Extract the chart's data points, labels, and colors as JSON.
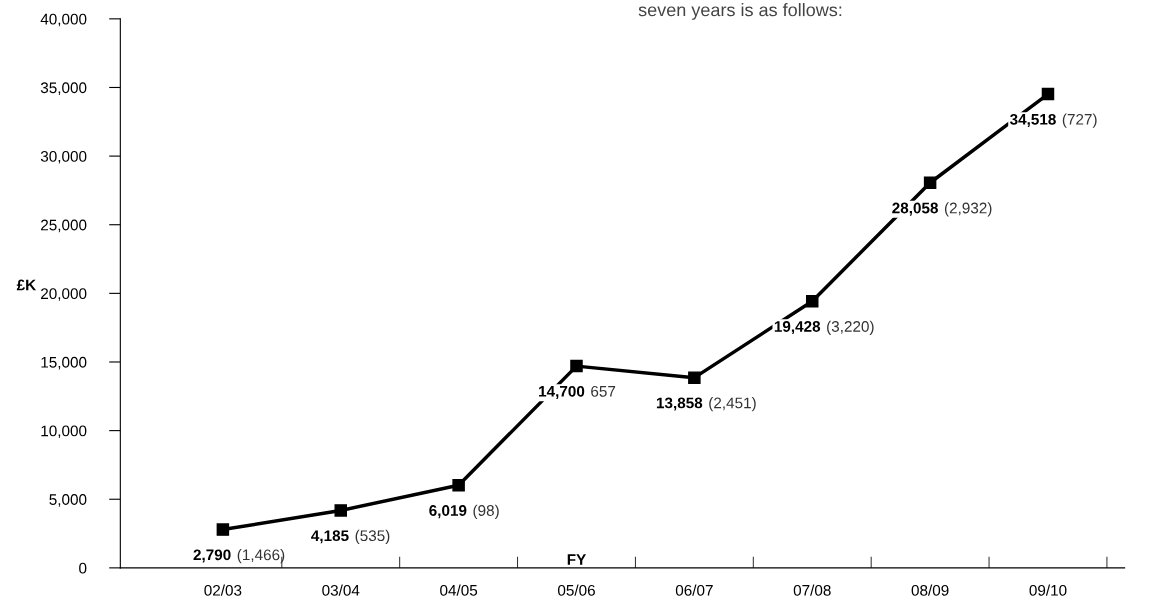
{
  "chart_data": {
    "type": "line",
    "ylabel": "£K",
    "xlabel": "FY",
    "annotations": [
      "seven years is as follows:"
    ],
    "categories": [
      "02/03",
      "03/04",
      "04/05",
      "05/06",
      "06/07",
      "07/08",
      "08/09",
      "09/10"
    ],
    "series": [
      {
        "color": "#000000",
        "values": [
          2790,
          4185,
          6019,
          14700,
          13858,
          19428,
          28058,
          34518
        ],
        "value_labels": [
          "2,790 (1,466)",
          "4,185 (535)",
          "6,019 (98)",
          "14,700 657",
          "13,858 (2,451)",
          "19,428 (3,220)",
          "28,058 (2,932)",
          "34,518 (727)"
        ]
      }
    ],
    "ylim": [
      0,
      40000
    ],
    "yticks": [
      {
        "value": 0,
        "label": "0"
      },
      {
        "value": 5000,
        "label": "5,000"
      },
      {
        "value": 10000,
        "label": "10,000"
      },
      {
        "value": 15000,
        "label": "15,000"
      },
      {
        "value": 20000,
        "label": "20,000"
      },
      {
        "value": 25000,
        "label": "25,000"
      },
      {
        "value": 30000,
        "label": "30,000"
      },
      {
        "value": 35000,
        "label": "35,000"
      },
      {
        "value": 40000,
        "label": "40,000"
      }
    ],
    "grid": false,
    "marker": "square",
    "line_style": "solid",
    "legend": false
  }
}
